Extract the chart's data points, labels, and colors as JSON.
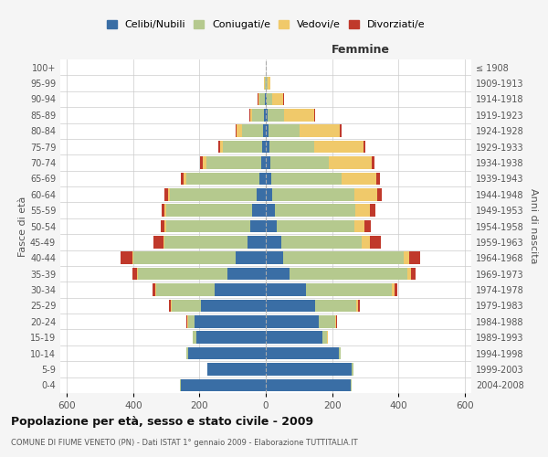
{
  "age_groups": [
    "0-4",
    "5-9",
    "10-14",
    "15-19",
    "20-24",
    "25-29",
    "30-34",
    "35-39",
    "40-44",
    "45-49",
    "50-54",
    "55-59",
    "60-64",
    "65-69",
    "70-74",
    "75-79",
    "80-84",
    "85-89",
    "90-94",
    "95-99",
    "100+"
  ],
  "birth_years": [
    "2004-2008",
    "1999-2003",
    "1994-1998",
    "1989-1993",
    "1984-1988",
    "1979-1983",
    "1974-1978",
    "1969-1973",
    "1964-1968",
    "1959-1963",
    "1954-1958",
    "1949-1953",
    "1944-1948",
    "1939-1943",
    "1934-1938",
    "1929-1933",
    "1924-1928",
    "1919-1923",
    "1914-1918",
    "1909-1913",
    "≤ 1908"
  ],
  "males": {
    "celibi": [
      255,
      175,
      235,
      210,
      215,
      195,
      155,
      115,
      90,
      55,
      48,
      42,
      28,
      18,
      15,
      10,
      8,
      5,
      3,
      1,
      0
    ],
    "coniugati": [
      5,
      2,
      5,
      10,
      20,
      90,
      175,
      270,
      310,
      250,
      252,
      258,
      262,
      222,
      165,
      120,
      65,
      35,
      15,
      3,
      0
    ],
    "vedovi": [
      0,
      0,
      0,
      0,
      2,
      2,
      3,
      3,
      3,
      5,
      5,
      5,
      5,
      8,
      10,
      8,
      15,
      8,
      5,
      2,
      0
    ],
    "divorziati": [
      0,
      0,
      0,
      0,
      3,
      5,
      10,
      15,
      35,
      30,
      12,
      10,
      10,
      8,
      8,
      5,
      3,
      2,
      2,
      0,
      0
    ]
  },
  "females": {
    "nubili": [
      255,
      260,
      220,
      170,
      160,
      148,
      120,
      72,
      52,
      48,
      33,
      28,
      20,
      17,
      14,
      10,
      8,
      6,
      3,
      1,
      0
    ],
    "coniugate": [
      5,
      5,
      5,
      15,
      50,
      125,
      260,
      355,
      365,
      240,
      235,
      242,
      247,
      212,
      175,
      135,
      95,
      50,
      15,
      5,
      0
    ],
    "vedove": [
      0,
      0,
      0,
      2,
      3,
      5,
      8,
      10,
      15,
      25,
      30,
      45,
      70,
      105,
      130,
      150,
      120,
      90,
      35,
      8,
      0
    ],
    "divorziate": [
      0,
      0,
      0,
      0,
      3,
      5,
      10,
      15,
      35,
      35,
      18,
      15,
      12,
      10,
      8,
      5,
      5,
      3,
      2,
      0,
      0
    ]
  },
  "colors": {
    "celibi": "#3a6ea5",
    "coniugati": "#b5c98e",
    "vedovi": "#f0c96a",
    "divorziati": "#c0392b"
  },
  "xlim": 620,
  "title": "Popolazione per età, sesso e stato civile - 2009",
  "subtitle": "COMUNE DI FIUME VENETO (PN) - Dati ISTAT 1° gennaio 2009 - Elaborazione TUTTITALIA.IT",
  "ylabel_left": "Fasce di età",
  "ylabel_right": "Anni di nascita",
  "xlabel_right": "Femmine",
  "bg_color": "#f5f5f5",
  "bar_bg_color": "#ffffff",
  "grid_color": "#cccccc",
  "legend_labels": [
    "Celibi/Nubili",
    "Coniugati/e",
    "Vedovi/e",
    "Divorziati/e"
  ]
}
